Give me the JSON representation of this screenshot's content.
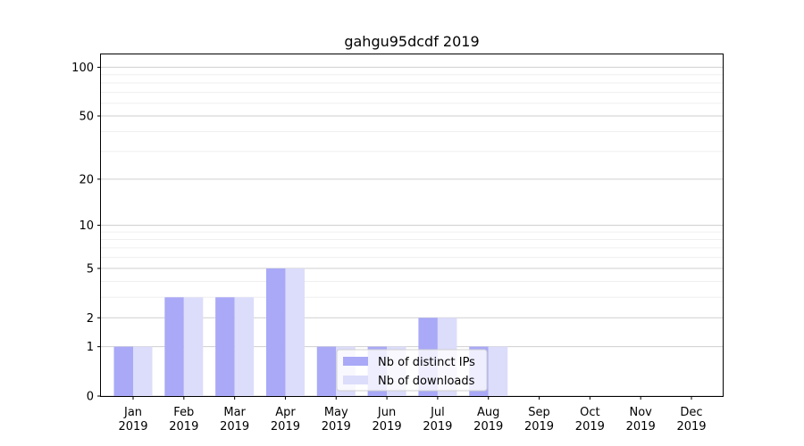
{
  "chart_data": {
    "type": "bar",
    "title": "gahgu95dcdf 2019",
    "xlabel": "",
    "ylabel": "",
    "categories": [
      "Jan\n2019",
      "Feb\n2019",
      "Mar\n2019",
      "Apr\n2019",
      "May\n2019",
      "Jun\n2019",
      "Jul\n2019",
      "Aug\n2019",
      "Sep\n2019",
      "Oct\n2019",
      "Nov\n2019",
      "Dec\n2019"
    ],
    "series": [
      {
        "name": "Nb of distinct IPs",
        "color": "#a9a9f7",
        "values": [
          1,
          3,
          3,
          5,
          1,
          1,
          2,
          1,
          0,
          0,
          0,
          0
        ]
      },
      {
        "name": "Nb of downloads",
        "color": "#dcdcfb",
        "values": [
          1,
          3,
          3,
          5,
          1,
          1,
          2,
          1,
          0,
          0,
          0,
          0
        ]
      }
    ],
    "y_scale": "log(1+y)",
    "ylim": [
      0,
      120
    ],
    "yticks": [
      0,
      1,
      2,
      5,
      10,
      20,
      50,
      100
    ],
    "ytick_labels": [
      "0",
      "1",
      "2",
      "5",
      "10",
      "20",
      "50",
      "100"
    ],
    "grid": true,
    "legend_position": "lower-center"
  }
}
